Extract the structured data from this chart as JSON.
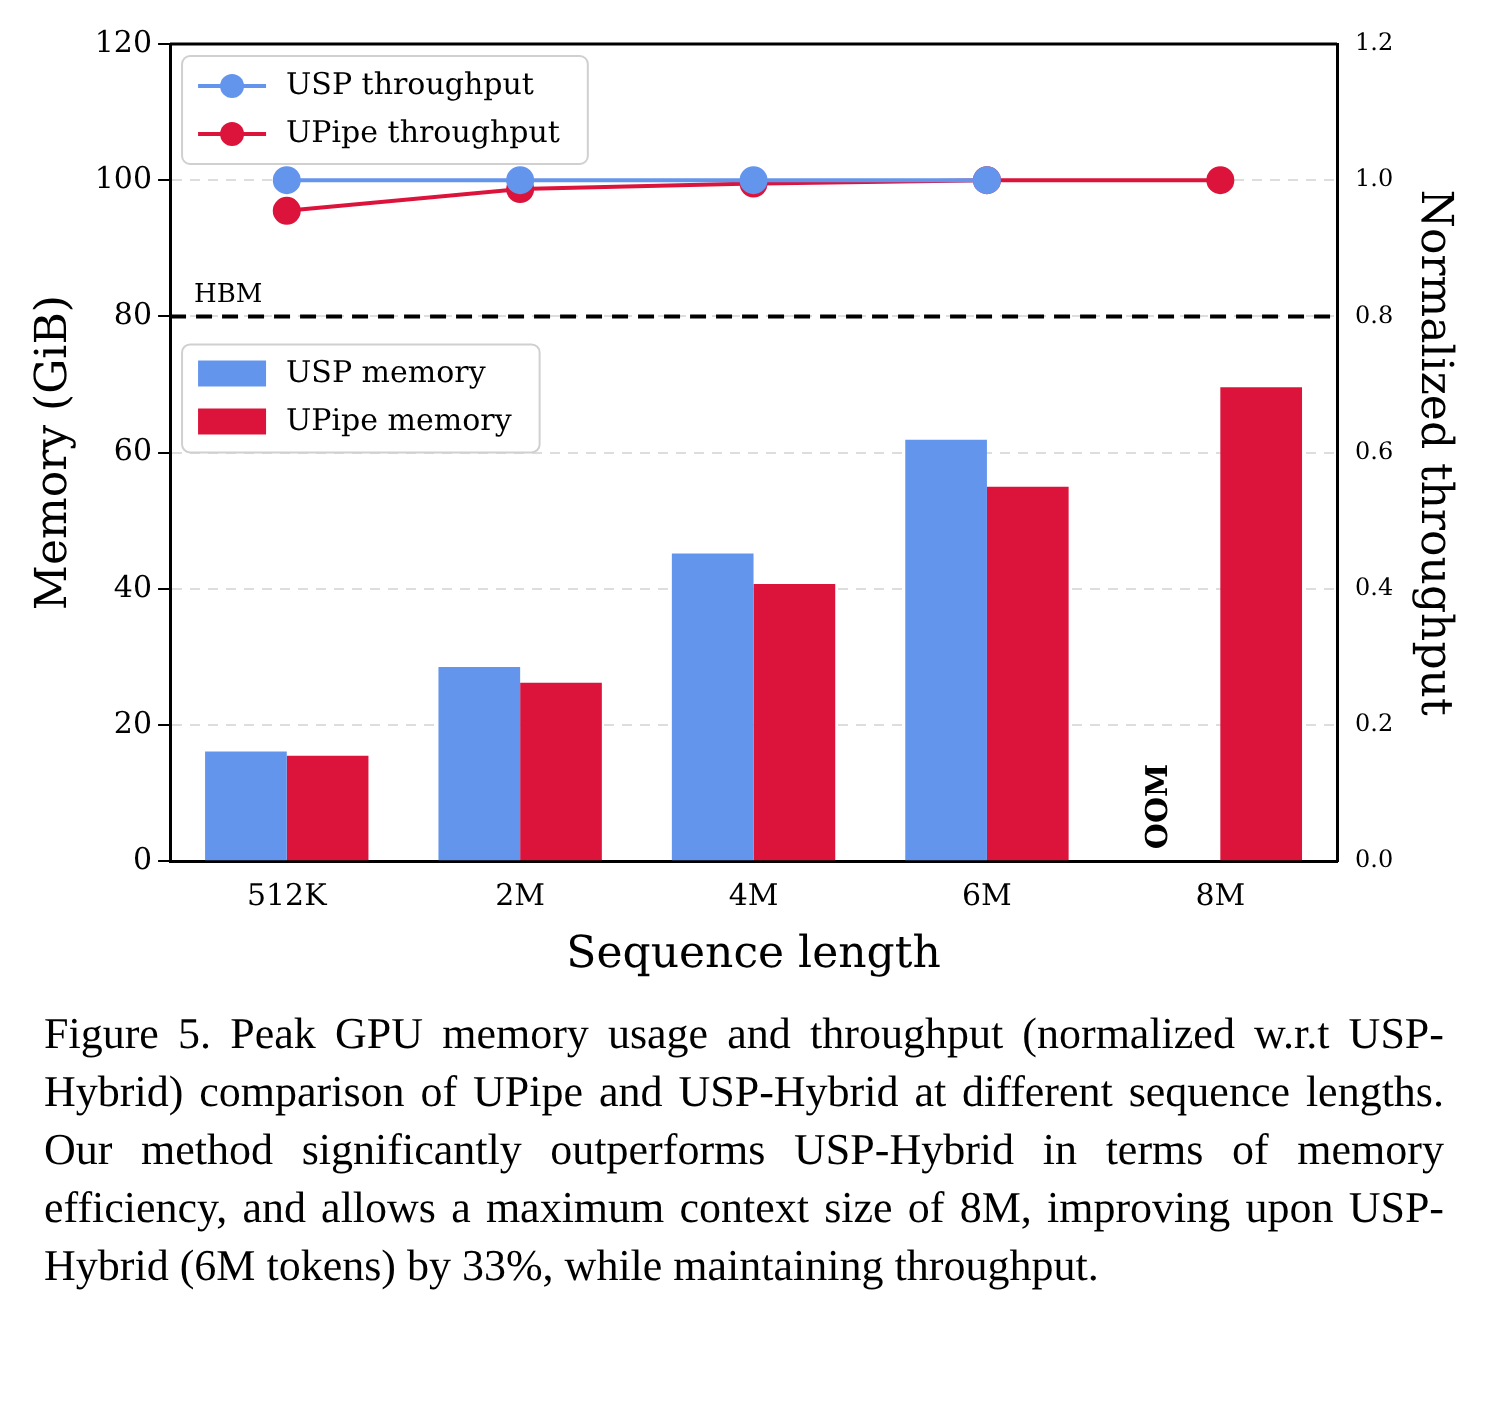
{
  "chart_data": {
    "type": "bar",
    "xlabel": "Sequence length",
    "ylabel": "Memory (GiB)",
    "y2label": "Normalized throughput",
    "categories": [
      "512K",
      "2M",
      "4M",
      "6M",
      "8M"
    ],
    "series": [
      {
        "name": "USP memory",
        "color": "#6495ed",
        "values": [
          16.1,
          28.5,
          45.2,
          61.9,
          null
        ]
      },
      {
        "name": "UPipe memory",
        "color": "#dc143c",
        "values": [
          15.5,
          26.2,
          40.7,
          55.0,
          69.6
        ]
      },
      {
        "name": "USP throughput",
        "type": "line",
        "axis": "y2",
        "color": "#6495ed",
        "values": [
          1.0,
          1.0,
          1.0,
          1.0,
          null
        ]
      },
      {
        "name": "UPipe throughput",
        "type": "line",
        "axis": "y2",
        "color": "#dc143c",
        "values": [
          0.955,
          0.987,
          0.995,
          1.0,
          1.0
        ]
      }
    ],
    "ylim": [
      0,
      120
    ],
    "yticks": [
      0,
      20,
      40,
      60,
      80,
      100,
      120
    ],
    "y2lim": [
      0,
      1.2
    ],
    "y2ticks": [
      {
        "value": 0,
        "label": "0.0"
      },
      {
        "value": 0.2,
        "label": "0.2"
      },
      {
        "value": 0.4,
        "label": "0.4"
      },
      {
        "value": 0.6,
        "label": "0.6"
      },
      {
        "value": 0.8,
        "label": "0.8"
      },
      {
        "value": 1,
        "label": "1.0"
      },
      {
        "value": 1.2,
        "label": "1.2"
      }
    ],
    "ref_lines": [
      {
        "axis": "y",
        "value": 80,
        "label": "HBM",
        "color": "#000000",
        "line_style": "dashed"
      }
    ],
    "annotations": [
      {
        "text": "OOM",
        "x": "8M",
        "y": 0
      },
      "Figure 5. Peak GPU memory usage and throughput (normalized w.r.t USP-Hybrid) comparison of UPipe and USP-Hybrid at different sequence lengths. Our method significantly outperforms USP-Hybrid in terms of memory efficiency, and allows a maximum context size of 8M, improving upon USP-Hybrid (6M tokens) by 33%, while maintaining throughput."
    ],
    "grid": "y",
    "legend": "top left",
    "marker": "circle",
    "line_style": "solid"
  }
}
